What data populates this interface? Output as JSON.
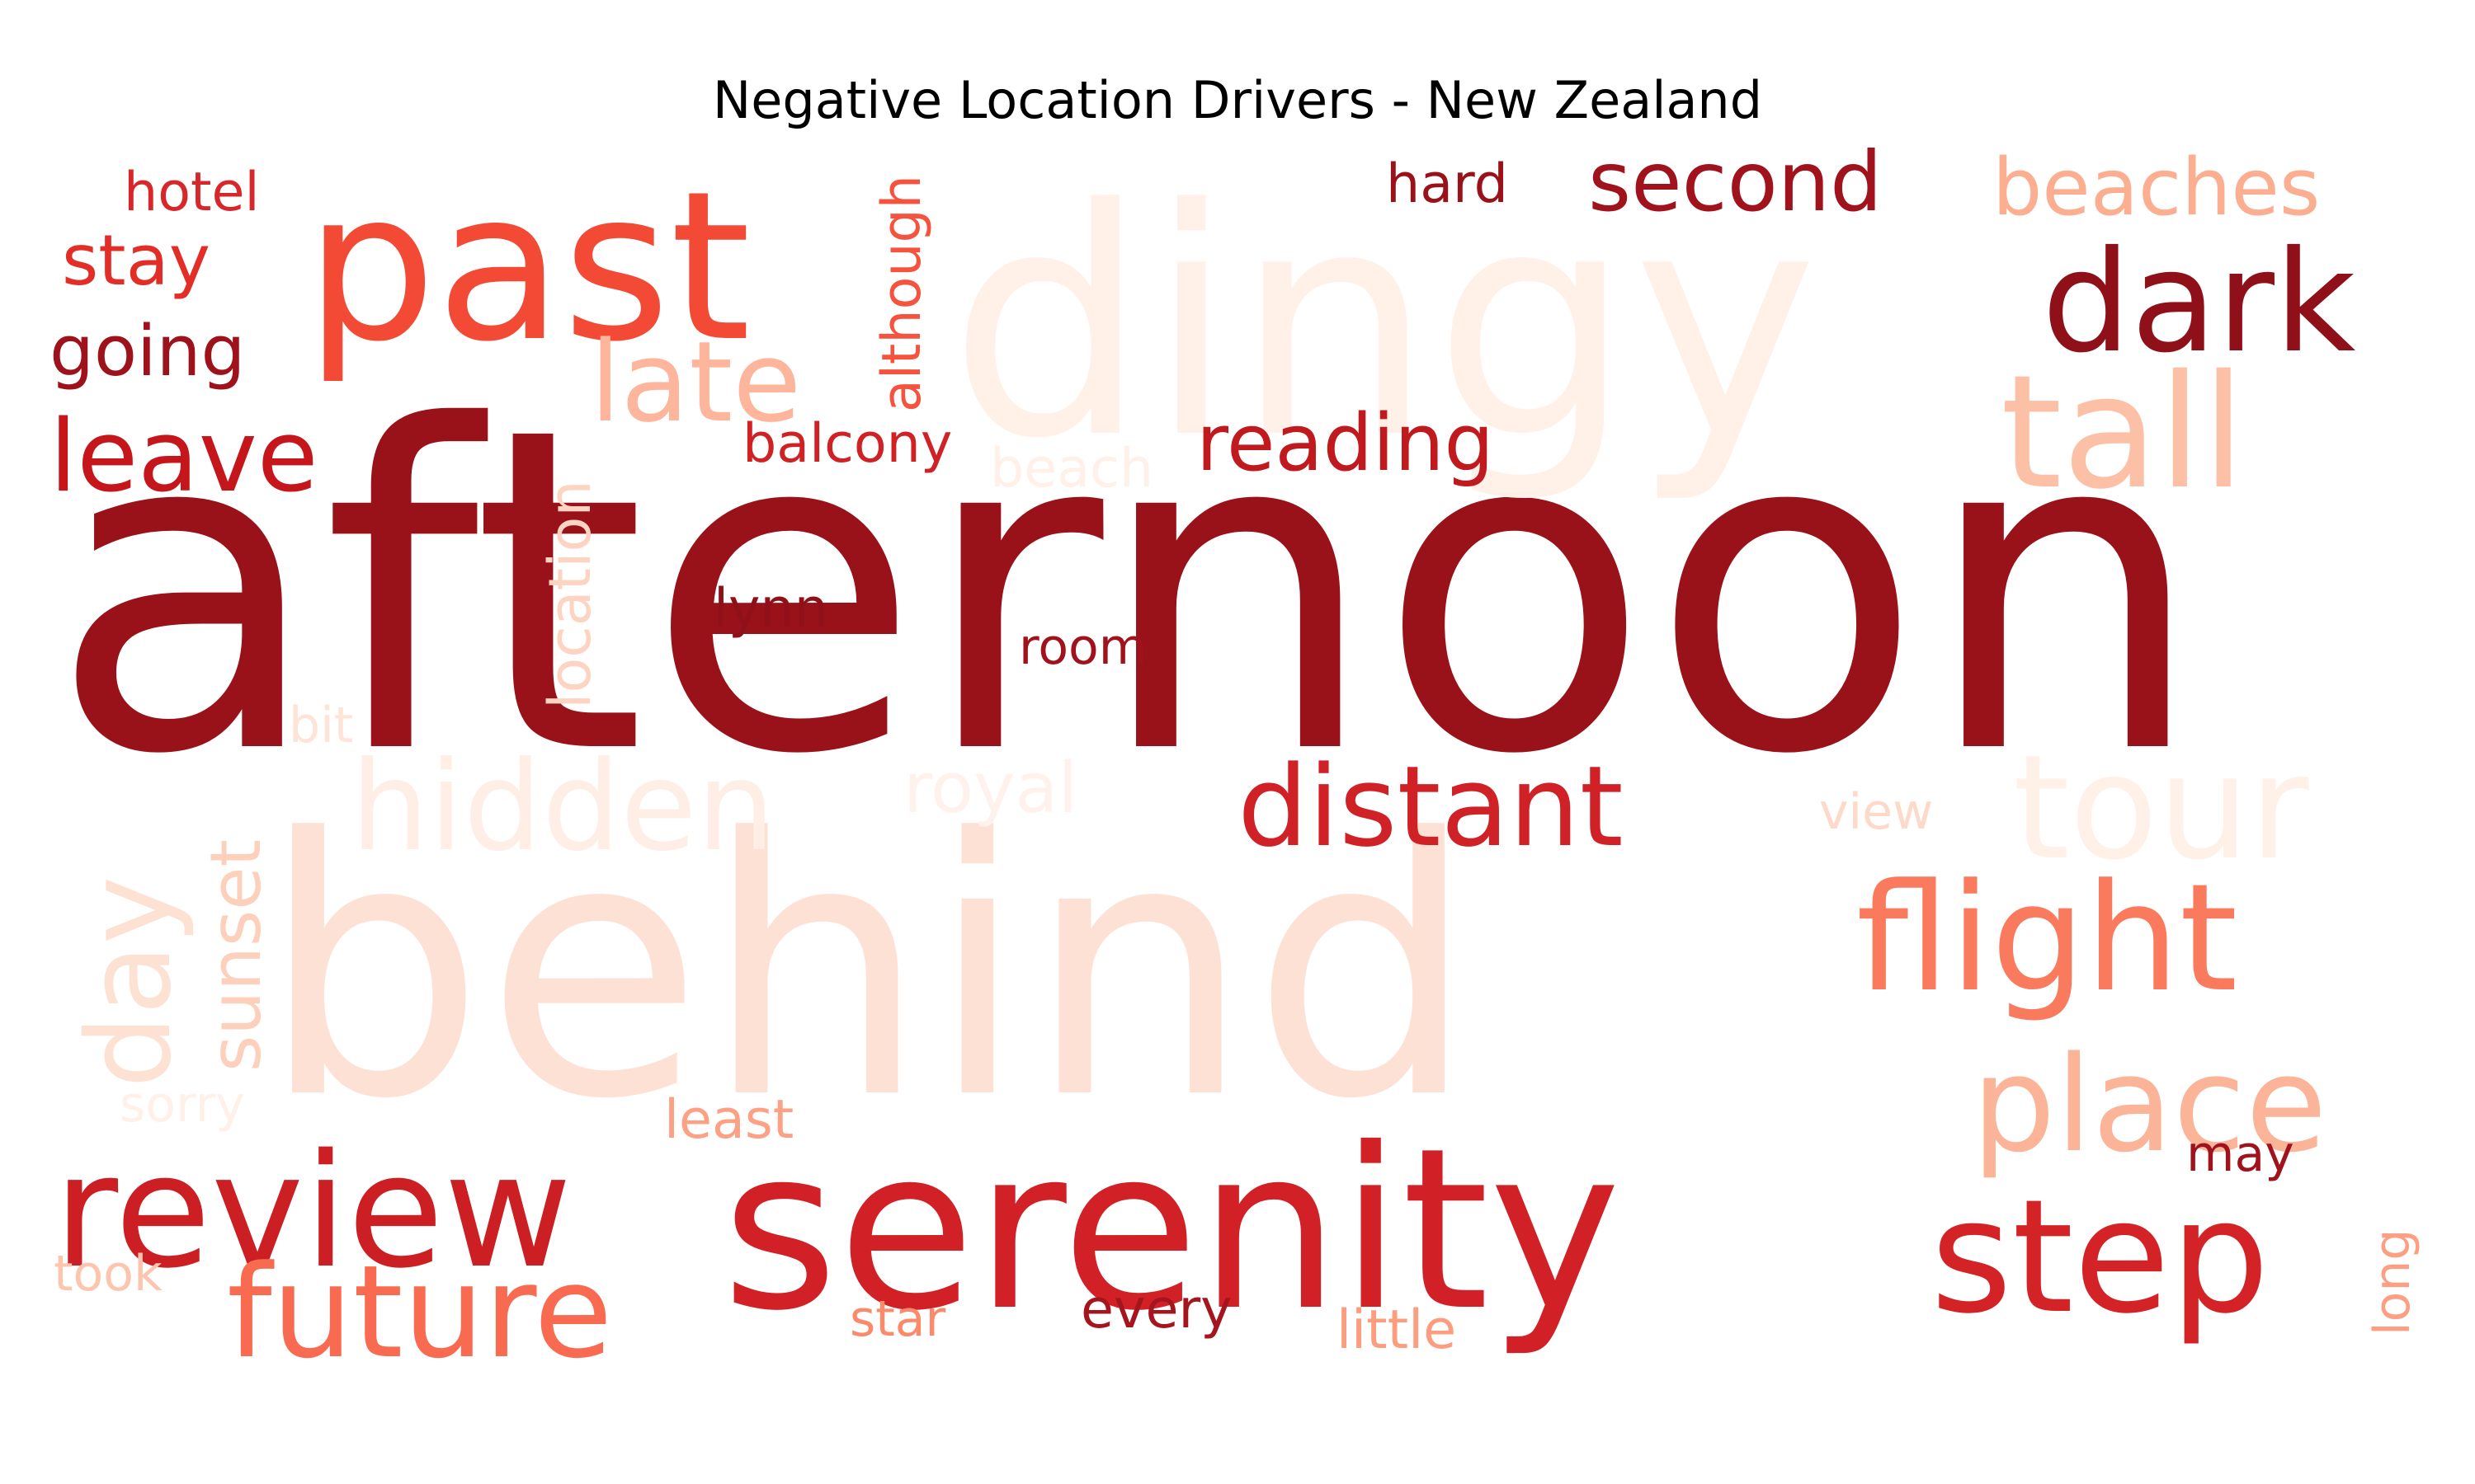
{
  "chart_data": {
    "type": "wordcloud",
    "title": "Negative Location Drivers - New Zealand",
    "words": [
      {
        "text": "afternoon",
        "color": "#99121a"
      },
      {
        "text": "behind",
        "color": "#fde1d5"
      },
      {
        "text": "dingy",
        "color": "#fff0e8"
      },
      {
        "text": "serenity",
        "color": "#d12126"
      },
      {
        "text": "past",
        "color": "#f24a35"
      },
      {
        "text": "review",
        "color": "#cc1f23"
      },
      {
        "text": "step",
        "color": "#d42326"
      },
      {
        "text": "dark",
        "color": "#8f1019"
      },
      {
        "text": "future",
        "color": "#f86b51"
      },
      {
        "text": "flight",
        "color": "#fa7a5d"
      },
      {
        "text": "tour",
        "color": "#fff0e8"
      },
      {
        "text": "place",
        "color": "#fcb499"
      },
      {
        "text": "tall",
        "color": "#fcc0a6"
      },
      {
        "text": "distant",
        "color": "#cf2126"
      },
      {
        "text": "day",
        "color": "#fde1d3"
      },
      {
        "text": "hidden",
        "color": "#ffeee6"
      },
      {
        "text": "late",
        "color": "#fdb69b"
      },
      {
        "text": "leave",
        "color": "#c5161c"
      },
      {
        "text": "second",
        "color": "#a0121c"
      },
      {
        "text": "beaches",
        "color": "#fcae91"
      },
      {
        "text": "reading",
        "color": "#c01a1f"
      },
      {
        "text": "going",
        "color": "#9d121b"
      },
      {
        "text": "stay",
        "color": "#e22e27"
      },
      {
        "text": "sunset",
        "color": "#fdd0bc"
      },
      {
        "text": "royal",
        "color": "#fff2ec"
      },
      {
        "text": "hotel",
        "color": "#d8272a"
      },
      {
        "text": "although",
        "color": "#f5533d"
      },
      {
        "text": "hard",
        "color": "#99121a"
      },
      {
        "text": "balcony",
        "color": "#d02125"
      },
      {
        "text": "location",
        "color": "#fdd3c1"
      },
      {
        "text": "beach",
        "color": "#fff0e8"
      },
      {
        "text": "lynn",
        "color": "#8f1019"
      },
      {
        "text": "room",
        "color": "#a0121c"
      },
      {
        "text": "bit",
        "color": "#fee4d8"
      },
      {
        "text": "view",
        "color": "#fdd9c9"
      },
      {
        "text": "sorry",
        "color": "#fff0e8"
      },
      {
        "text": "least",
        "color": "#fca184"
      },
      {
        "text": "may",
        "color": "#a0121c"
      },
      {
        "text": "took",
        "color": "#fdc5ae"
      },
      {
        "text": "star",
        "color": "#fb8a6b"
      },
      {
        "text": "every",
        "color": "#a5151d"
      },
      {
        "text": "little",
        "color": "#fc9d7f"
      },
      {
        "text": "long",
        "color": "#fc9f82"
      }
    ]
  }
}
